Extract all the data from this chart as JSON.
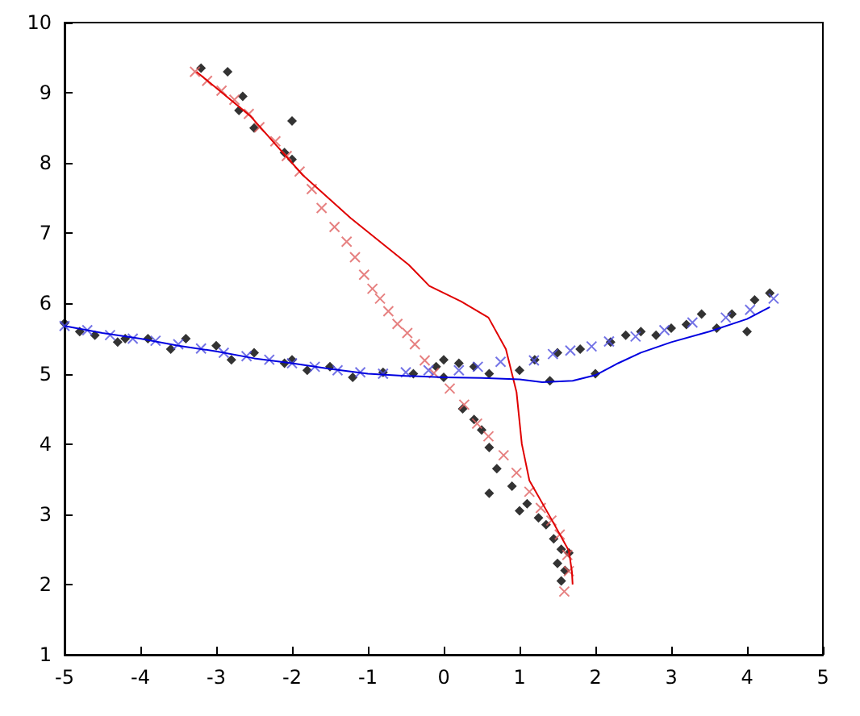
{
  "chart_data": {
    "type": "scatter",
    "xlim": [
      -5,
      5
    ],
    "ylim": [
      1,
      10
    ],
    "xticks": [
      -5,
      -4,
      -3,
      -2,
      -1,
      0,
      1,
      2,
      3,
      4,
      5
    ],
    "yticks": [
      1,
      2,
      3,
      4,
      5,
      6,
      7,
      8,
      9,
      10
    ],
    "grid": false,
    "series": [
      {
        "marker": "diamond",
        "color": "#000000",
        "x": [
          -5,
          -4.8,
          -4.6,
          -4.3,
          -4.2,
          -3.9,
          -3.6,
          -3.4,
          -3.0,
          -2.8,
          -2.5,
          -2.1,
          -2.0,
          -1.8,
          -1.5,
          -1.2,
          -0.8,
          -0.4,
          0,
          0.2,
          0.4,
          0.6,
          1,
          1.2,
          1.4,
          1.5,
          1.8,
          2.0,
          2.2,
          2.4,
          2.6,
          2.8,
          3.0,
          3.2,
          3.4,
          3.6,
          3.8,
          4.0,
          4.1,
          4.3,
          -3.2,
          -2.85,
          -2.65,
          -2.7,
          -2.5,
          -2.0,
          -2.1,
          -2.0,
          -0.1,
          0,
          0.25,
          0.4,
          0.5,
          0.6,
          0.7,
          0.9,
          1.1,
          0.6,
          1.25,
          1.35,
          1.45,
          1.55,
          1.5,
          1.6,
          1.55,
          1.65,
          1.0
        ],
        "values": [
          5.72,
          5.6,
          5.55,
          5.45,
          5.5,
          5.5,
          5.35,
          5.5,
          5.4,
          5.2,
          5.3,
          5.15,
          5.2,
          5.05,
          5.1,
          4.95,
          5.02,
          5.0,
          5.2,
          5.15,
          5.1,
          5.0,
          5.05,
          5.2,
          4.9,
          5.3,
          5.35,
          5.0,
          5.45,
          5.55,
          5.6,
          5.55,
          5.65,
          5.7,
          5.85,
          5.65,
          5.85,
          5.6,
          6.05,
          6.15,
          9.35,
          9.3,
          8.95,
          8.75,
          8.5,
          8.6,
          8.15,
          8.05,
          5.1,
          4.95,
          4.5,
          4.35,
          4.2,
          3.95,
          3.65,
          3.4,
          3.15,
          3.3,
          2.95,
          2.85,
          2.65,
          2.5,
          2.3,
          2.2,
          2.05,
          2.45,
          3.05
        ]
      },
      {
        "marker": "cross",
        "color": "#e06060",
        "x": [
          -3.28,
          -3.12,
          -2.93,
          -2.76,
          -2.57,
          -2.43,
          -2.22,
          -2.07,
          -1.9,
          -1.74,
          -1.61,
          -1.44,
          -1.28,
          -1.17,
          -1.05,
          -0.94,
          -0.84,
          -0.73,
          -0.61,
          -0.48,
          -0.38,
          -0.25,
          -0.13,
          0.08,
          0.27,
          0.44,
          0.59,
          0.79,
          0.96,
          1.13,
          1.28,
          1.42,
          1.53,
          1.63,
          1.65,
          1.59
        ],
        "values": [
          9.3,
          9.17,
          9.03,
          8.9,
          8.7,
          8.51,
          8.31,
          8.1,
          7.88,
          7.63,
          7.36,
          7.09,
          6.88,
          6.66,
          6.41,
          6.21,
          6.07,
          5.89,
          5.71,
          5.58,
          5.42,
          5.19,
          5.01,
          4.79,
          4.56,
          4.29,
          4.11,
          3.84,
          3.59,
          3.32,
          3.09,
          2.91,
          2.71,
          2.42,
          2.19,
          1.9
        ]
      },
      {
        "marker": "cross",
        "color": "#5050e0",
        "x": [
          -5,
          -4.7,
          -4.4,
          -4.1,
          -3.8,
          -3.5,
          -3.2,
          -2.9,
          -2.6,
          -2.3,
          -2.0,
          -1.7,
          -1.4,
          -1.1,
          -0.8,
          -0.5,
          -0.2,
          0.2,
          0.45,
          0.75,
          1.19,
          1.44,
          1.67,
          1.95,
          2.18,
          2.53,
          2.91,
          3.28,
          3.72,
          4.04,
          4.35
        ],
        "values": [
          5.68,
          5.62,
          5.55,
          5.5,
          5.47,
          5.42,
          5.36,
          5.3,
          5.25,
          5.2,
          5.15,
          5.1,
          5.05,
          5.02,
          5.0,
          5.02,
          5.05,
          5.05,
          5.1,
          5.17,
          5.19,
          5.28,
          5.33,
          5.39,
          5.46,
          5.53,
          5.62,
          5.73,
          5.8,
          5.91,
          6.07
        ]
      },
      {
        "type": "line",
        "marker": "none",
        "line_style": "solid",
        "color": "#e00000",
        "x": [
          -3.26,
          -2.55,
          -1.86,
          -1.23,
          -0.46,
          -0.19,
          0.23,
          0.59,
          0.82,
          0.96,
          1.03,
          1.13,
          1.42,
          1.65,
          1.69,
          1.7
        ],
        "values": [
          9.3,
          8.67,
          7.83,
          7.22,
          6.55,
          6.25,
          6.03,
          5.8,
          5.35,
          4.74,
          4.0,
          3.48,
          2.93,
          2.48,
          2.19,
          2.0
        ]
      },
      {
        "type": "line",
        "marker": "none",
        "line_style": "solid",
        "color": "#0000e0",
        "x": [
          -5,
          -4.5,
          -4,
          -3.5,
          -3,
          -2.5,
          -2,
          -1.5,
          -1,
          -0.5,
          0,
          0.5,
          1,
          1.3,
          1.7,
          2,
          2.3,
          2.6,
          3,
          3.5,
          4,
          4.3
        ],
        "values": [
          5.68,
          5.58,
          5.5,
          5.4,
          5.32,
          5.22,
          5.15,
          5.07,
          5.0,
          4.97,
          4.95,
          4.94,
          4.92,
          4.88,
          4.9,
          4.98,
          5.15,
          5.3,
          5.45,
          5.6,
          5.78,
          5.95
        ]
      }
    ]
  }
}
